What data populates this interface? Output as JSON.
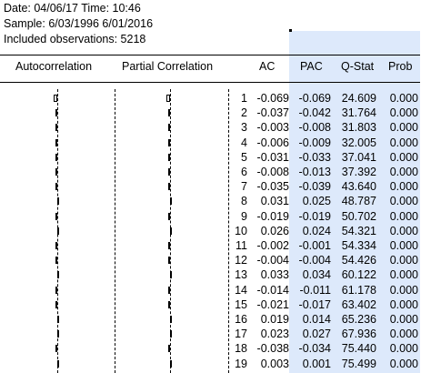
{
  "info": {
    "line1": "Date: 04/06/17   Time: 10:46",
    "line2": "Sample: 6/03/1996 6/01/2016",
    "line3": "Included observations: 5218"
  },
  "headers": {
    "autocorrelation": "Autocorrelation",
    "partial_correlation": "Partial Correlation",
    "ac": "AC",
    "pac": "PAC",
    "qstat": "Q-Stat",
    "prob": "Prob"
  },
  "colors": {
    "highlight": "#dde9fb"
  },
  "rows": [
    {
      "lag": "1",
      "ac": "-0.069",
      "pac": "-0.069",
      "q": "24.609",
      "prob": "0.000"
    },
    {
      "lag": "2",
      "ac": "-0.037",
      "pac": "-0.042",
      "q": "31.764",
      "prob": "0.000"
    },
    {
      "lag": "3",
      "ac": "-0.003",
      "pac": "-0.008",
      "q": "31.803",
      "prob": "0.000"
    },
    {
      "lag": "4",
      "ac": "-0.006",
      "pac": "-0.009",
      "q": "32.005",
      "prob": "0.000"
    },
    {
      "lag": "5",
      "ac": "-0.031",
      "pac": "-0.033",
      "q": "37.041",
      "prob": "0.000"
    },
    {
      "lag": "6",
      "ac": "-0.008",
      "pac": "-0.013",
      "q": "37.392",
      "prob": "0.000"
    },
    {
      "lag": "7",
      "ac": "-0.035",
      "pac": "-0.039",
      "q": "43.640",
      "prob": "0.000"
    },
    {
      "lag": "8",
      "ac": "0.031",
      "pac": "0.025",
      "q": "48.787",
      "prob": "0.000"
    },
    {
      "lag": "9",
      "ac": "-0.019",
      "pac": "-0.019",
      "q": "50.702",
      "prob": "0.000"
    },
    {
      "lag": "10",
      "ac": "0.026",
      "pac": "0.024",
      "q": "54.321",
      "prob": "0.000"
    },
    {
      "lag": "11",
      "ac": "-0.002",
      "pac": "-0.001",
      "q": "54.334",
      "prob": "0.000"
    },
    {
      "lag": "12",
      "ac": "-0.004",
      "pac": "-0.004",
      "q": "54.426",
      "prob": "0.000"
    },
    {
      "lag": "13",
      "ac": "0.033",
      "pac": "0.034",
      "q": "60.122",
      "prob": "0.000"
    },
    {
      "lag": "14",
      "ac": "-0.014",
      "pac": "-0.011",
      "q": "61.178",
      "prob": "0.000"
    },
    {
      "lag": "15",
      "ac": "-0.021",
      "pac": "-0.017",
      "q": "63.402",
      "prob": "0.000"
    },
    {
      "lag": "16",
      "ac": "0.019",
      "pac": "0.014",
      "q": "65.236",
      "prob": "0.000"
    },
    {
      "lag": "17",
      "ac": "0.023",
      "pac": "0.027",
      "q": "67.936",
      "prob": "0.000"
    },
    {
      "lag": "18",
      "ac": "-0.038",
      "pac": "-0.034",
      "q": "75.440",
      "prob": "0.000"
    },
    {
      "lag": "19",
      "ac": "0.003",
      "pac": "0.001",
      "q": "75.499",
      "prob": "0.000"
    }
  ]
}
